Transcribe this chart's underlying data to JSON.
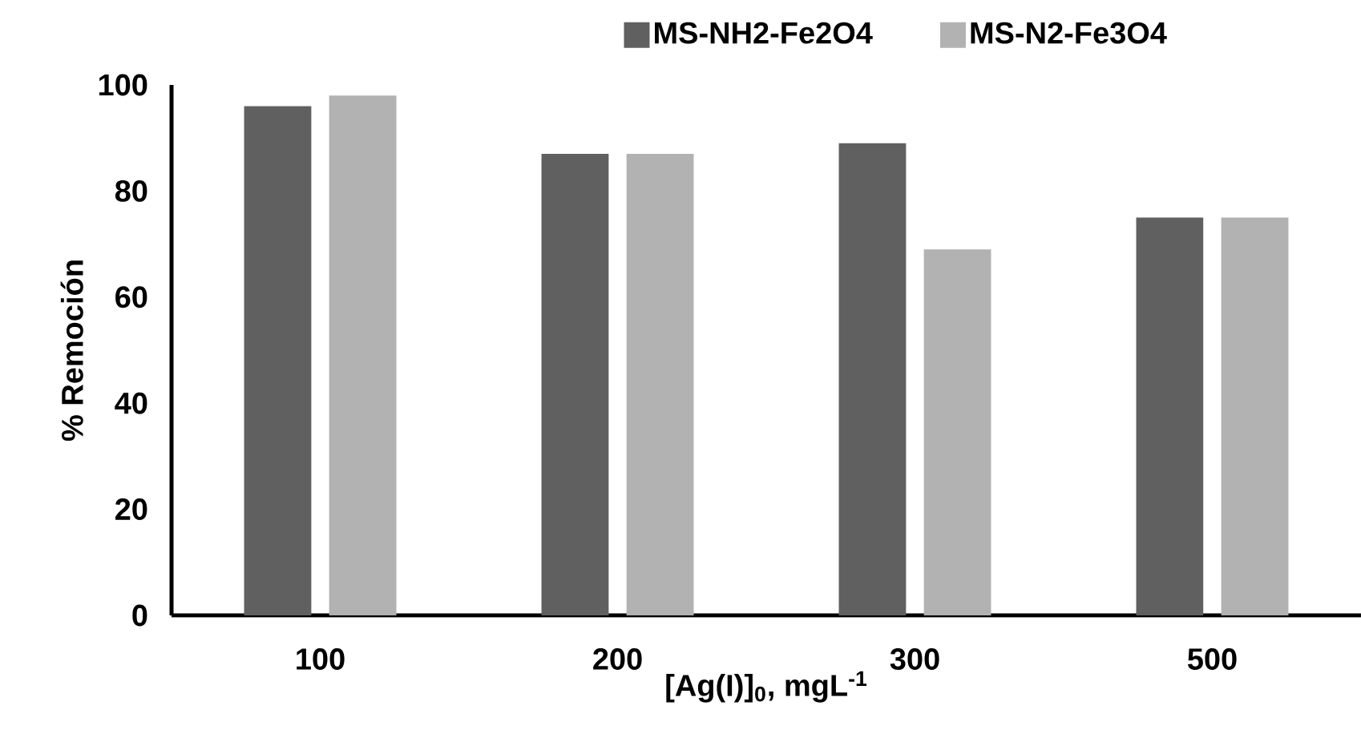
{
  "chart_data": {
    "type": "bar",
    "xlabel": "[Ag(I)]$_{0}$, mgL$^{-1}$",
    "ylabel": "% Remoción",
    "categories": [
      "100",
      "200",
      "300",
      "500"
    ],
    "series": [
      {
        "name": "MS-NH2-Fe2O4",
        "color": "#606060",
        "values": [
          96,
          87,
          89,
          75
        ]
      },
      {
        "name": "MS-N2-Fe3O4",
        "color": "#b2b2b2",
        "values": [
          98,
          87,
          69,
          75
        ]
      }
    ],
    "ylim": [
      0,
      100
    ],
    "yticks": [
      0,
      20,
      40,
      60,
      80,
      100
    ],
    "legend": "top",
    "grid": false
  }
}
